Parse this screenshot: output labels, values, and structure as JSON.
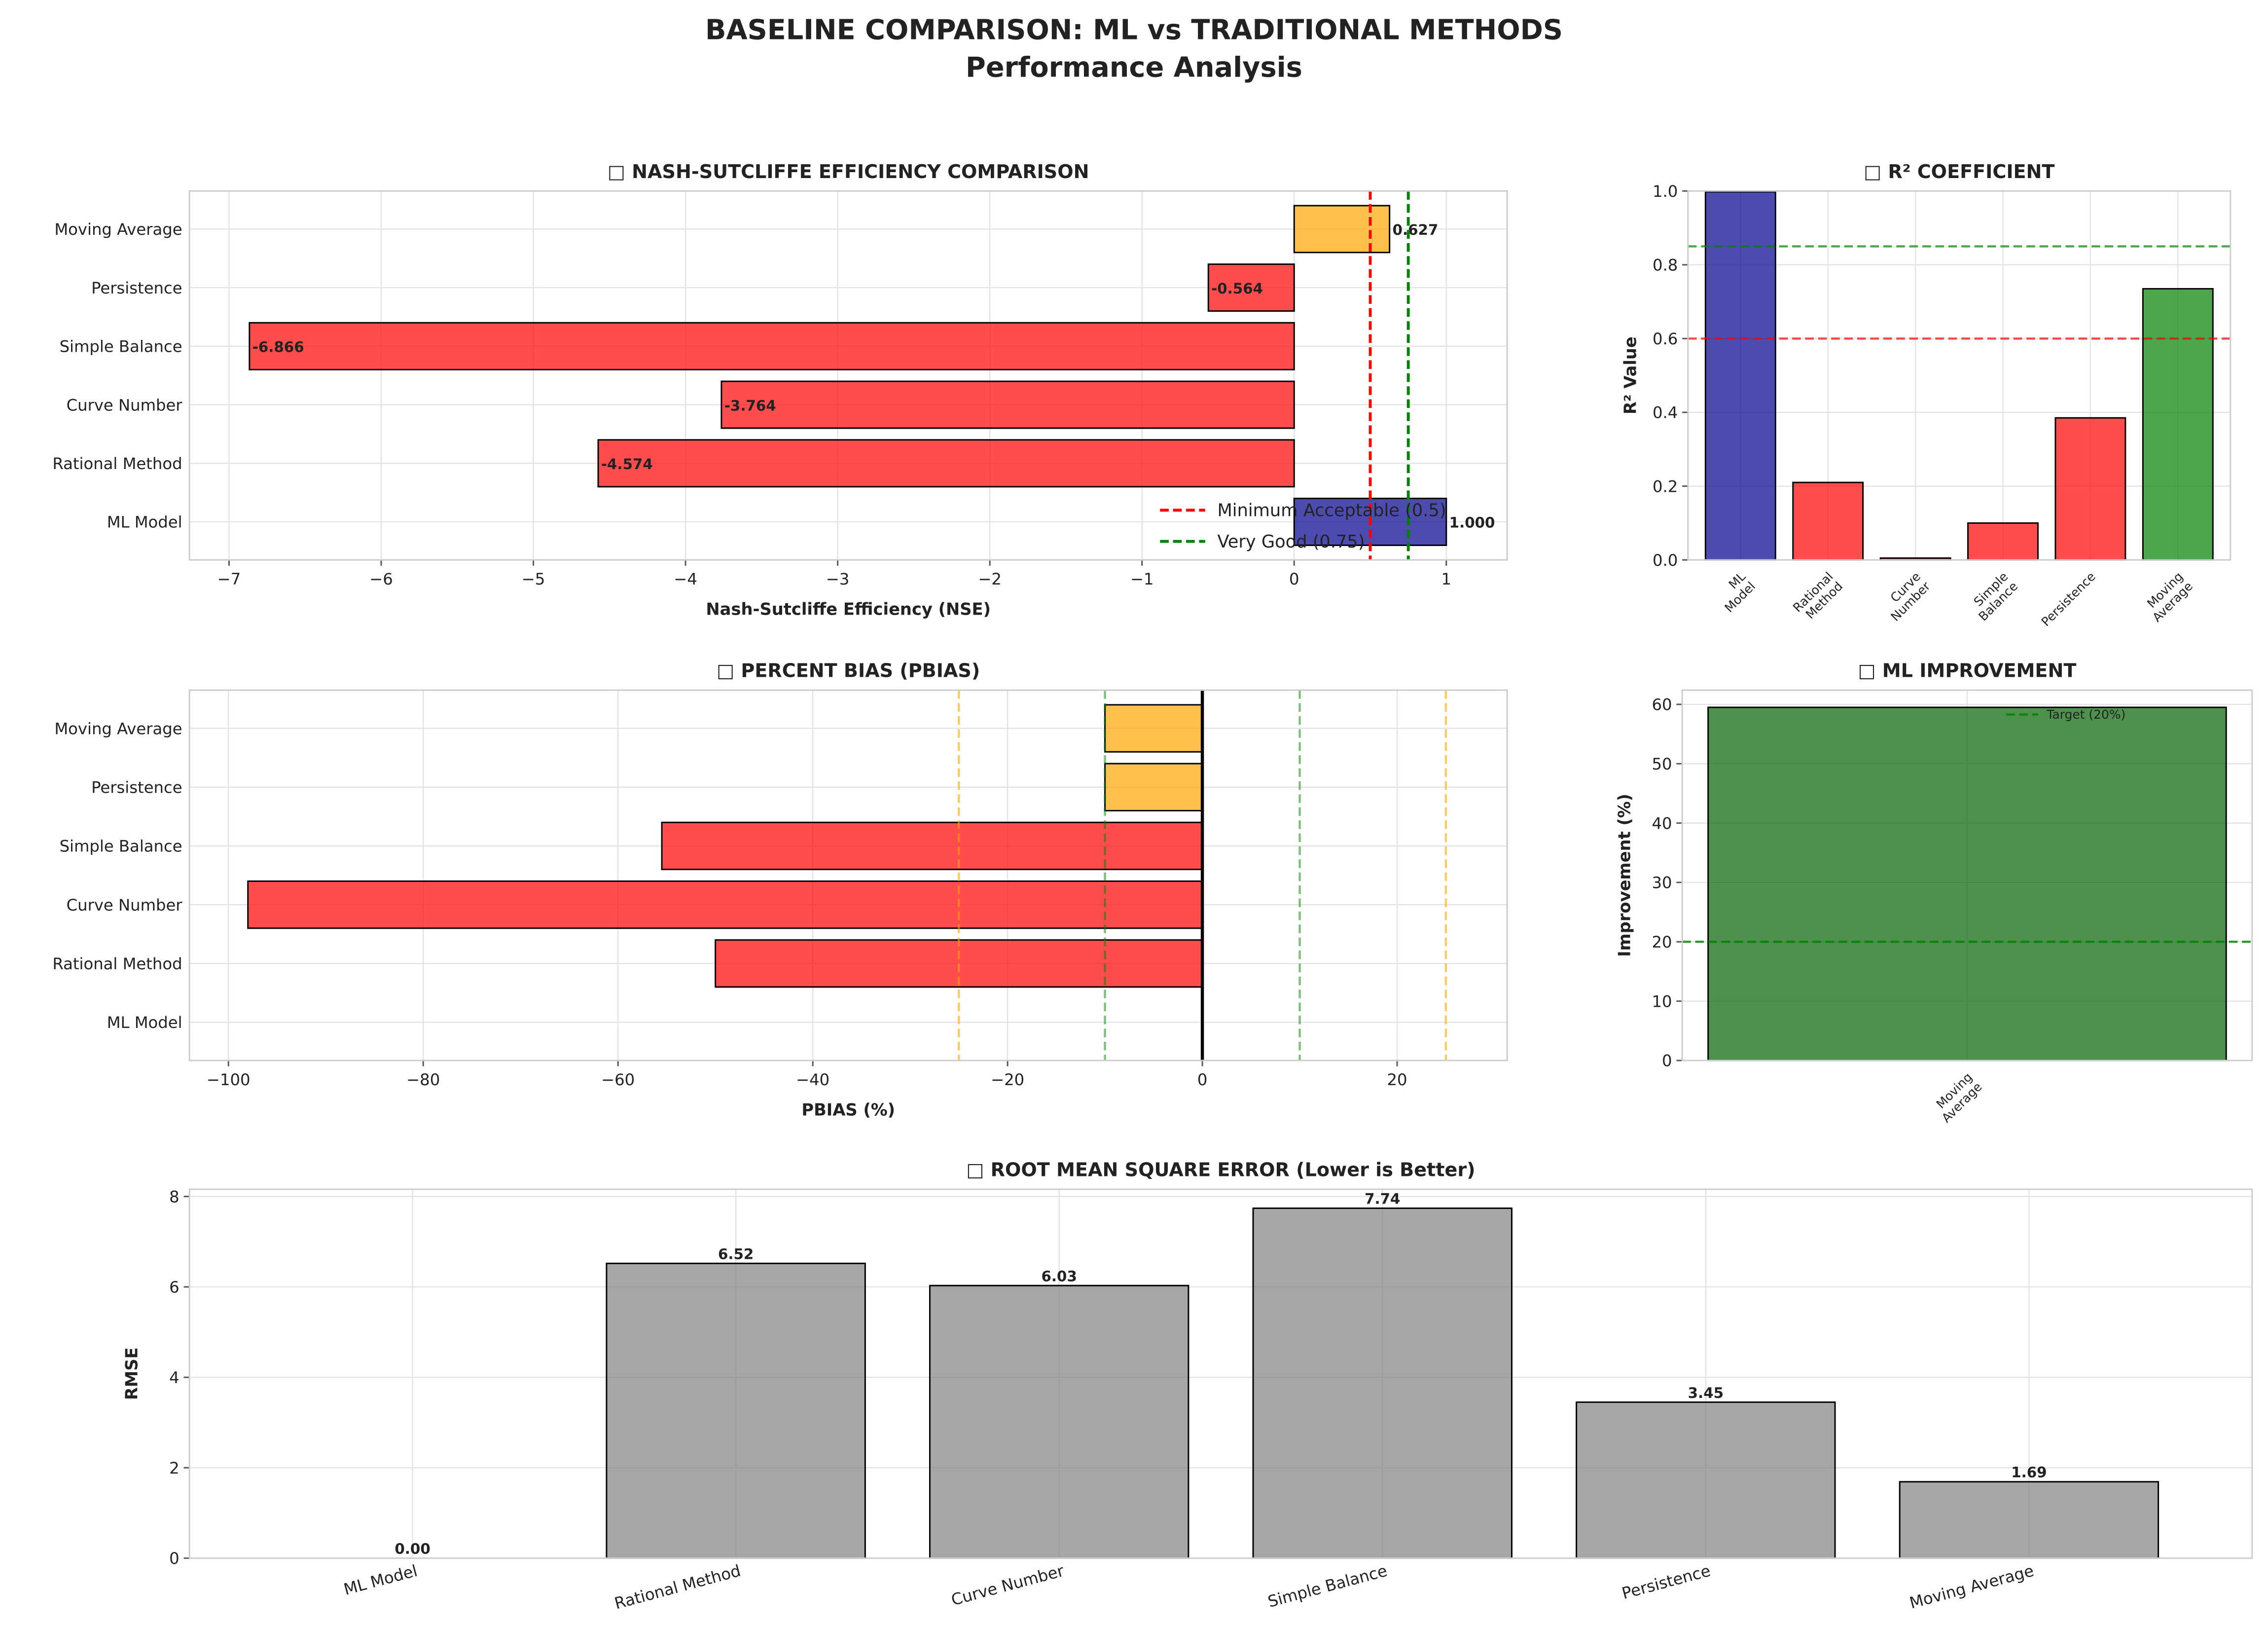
{
  "title": "BASELINE COMPARISON: ML vs TRADITIONAL METHODS",
  "subtitle": "Performance Analysis",
  "chart_data": [
    {
      "type": "barh",
      "title": "□ NASH-SUTCLIFFE EFFICIENCY COMPARISON",
      "xlabel": "Nash-Sutcliffe Efficiency (NSE)",
      "categories": [
        "ML Model",
        "Rational Method",
        "Curve Number",
        "Simple Balance",
        "Persistence",
        "Moving Average"
      ],
      "values": [
        1.0,
        -4.574,
        -3.764,
        -6.866,
        -0.564,
        0.627
      ],
      "value_labels": [
        "1.000",
        "-4.574",
        "-3.764",
        "-6.866",
        "-0.564",
        "0.627"
      ],
      "colors": [
        "#00008b",
        "#ff0000",
        "#ff0000",
        "#ff0000",
        "#ff0000",
        "#ffa500"
      ],
      "alpha": 0.7,
      "xlim": [
        -7.26,
        1.4
      ],
      "xticks": [
        {
          "value": -7,
          "label": "−7"
        },
        {
          "value": -6,
          "label": "−6"
        },
        {
          "value": -5,
          "label": "−5"
        },
        {
          "value": -4,
          "label": "−4"
        },
        {
          "value": -3,
          "label": "−3"
        },
        {
          "value": -2,
          "label": "−2"
        },
        {
          "value": -1,
          "label": "−1"
        },
        0,
        1
      ],
      "ref_lines": [
        {
          "value": 0.5,
          "color": "#ff0000",
          "style": "dashed",
          "width": 2,
          "alpha": 1,
          "label": "Minimum Acceptable (0.5)"
        },
        {
          "value": 0.75,
          "color": "#008000",
          "style": "dashed",
          "width": 2,
          "alpha": 1,
          "label": "Very Good (0.75)"
        }
      ],
      "legend": "lower right",
      "grid": true
    },
    {
      "type": "bar",
      "title": "□ R² COEFFICIENT",
      "ylabel": "R² Value",
      "categories": [
        "ML\nModel",
        "Rational\nMethod",
        "Curve\nNumber",
        "Simple\nBalance",
        "Persistence",
        "Moving\nAverage"
      ],
      "values": [
        0.998,
        0.21,
        0.005,
        0.1,
        0.385,
        0.735
      ],
      "colors": [
        "#00008b",
        "#ff0000",
        "#ff0000",
        "#ff0000",
        "#ff0000",
        "#008000"
      ],
      "alpha": 0.7,
      "ylim": [
        0,
        1
      ],
      "yticks": [
        {
          "value": 0,
          "label": "0.0"
        },
        {
          "value": 0.2,
          "label": "0.2"
        },
        {
          "value": 0.4,
          "label": "0.4"
        },
        {
          "value": 0.6,
          "label": "0.6"
        },
        {
          "value": 0.8,
          "label": "0.8"
        },
        {
          "value": 1,
          "label": "1.0"
        }
      ],
      "ref_lines": [
        {
          "value": 0.6,
          "color": "#ff0000",
          "style": "dashed",
          "width": 1.5,
          "alpha": 0.7
        },
        {
          "value": 0.85,
          "color": "#008000",
          "style": "dashed",
          "width": 1.5,
          "alpha": 0.7
        }
      ],
      "xtick_rotation": 45,
      "grid": true
    },
    {
      "type": "barh",
      "title": "□ PERCENT BIAS (PBIAS)",
      "xlabel": "PBIAS (%)",
      "categories": [
        "ML Model",
        "Rational Method",
        "Curve Number",
        "Simple Balance",
        "Persistence",
        "Moving Average"
      ],
      "values": [
        0,
        -50,
        -98,
        -55.5,
        -10,
        -10
      ],
      "colors": [
        "#008000",
        "#ff0000",
        "#ff0000",
        "#ff0000",
        "#ffa500",
        "#ffa500"
      ],
      "alpha": 0.7,
      "xlim": [
        -104,
        31.3
      ],
      "xticks": [
        {
          "value": -100,
          "label": "−100"
        },
        {
          "value": -80,
          "label": "−80"
        },
        {
          "value": -60,
          "label": "−60"
        },
        {
          "value": -40,
          "label": "−40"
        },
        {
          "value": -20,
          "label": "−20"
        },
        0,
        20
      ],
      "ref_lines": [
        {
          "value": -25,
          "color": "#ffa500",
          "style": "dashed",
          "width": 1.5,
          "alpha": 0.6
        },
        {
          "value": 25,
          "color": "#ffa500",
          "style": "dashed",
          "width": 1.5,
          "alpha": 0.6
        },
        {
          "value": -10,
          "color": "#008000",
          "style": "dashed",
          "width": 1.5,
          "alpha": 0.5
        },
        {
          "value": 10,
          "color": "#008000",
          "style": "dashed",
          "width": 1.5,
          "alpha": 0.5
        },
        {
          "value": 0,
          "color": "#000000",
          "style": "solid",
          "width": 2.2,
          "alpha": 1
        }
      ],
      "grid": true
    },
    {
      "type": "bar",
      "title": "□ ML IMPROVEMENT",
      "ylabel": "Improvement (%)",
      "categories": [
        "Moving\nAverage"
      ],
      "values": [
        59.5
      ],
      "colors": [
        "#006400"
      ],
      "alpha": 0.7,
      "ylim": [
        0,
        62.4
      ],
      "yticks": [
        0,
        10,
        20,
        30,
        40,
        50,
        60
      ],
      "ref_lines": [
        {
          "value": 20,
          "color": "#008000",
          "style": "dashed",
          "width": 1.5,
          "alpha": 0.8,
          "label": "Target (20%)"
        }
      ],
      "legend": "upper right",
      "xtick_rotation": 45,
      "grid": true
    },
    {
      "type": "bar",
      "title": "□ ROOT MEAN SQUARE ERROR (Lower is Better)",
      "ylabel": "RMSE",
      "categories": [
        "ML Model",
        "Rational Method",
        "Curve Number",
        "Simple Balance",
        "Persistence",
        "Moving Average"
      ],
      "values": [
        0,
        6.52,
        6.03,
        7.74,
        3.45,
        1.69
      ],
      "value_labels": [
        "0.00",
        "6.52",
        "6.03",
        "7.74",
        "3.45",
        "1.69"
      ],
      "colors": [
        "#808080",
        "#808080",
        "#808080",
        "#808080",
        "#808080",
        "#808080"
      ],
      "alpha": 0.7,
      "ylim": [
        0,
        8.16
      ],
      "yticks": [
        0,
        2,
        4,
        6,
        8
      ],
      "xtick_rotation": 15,
      "grid": true
    }
  ]
}
